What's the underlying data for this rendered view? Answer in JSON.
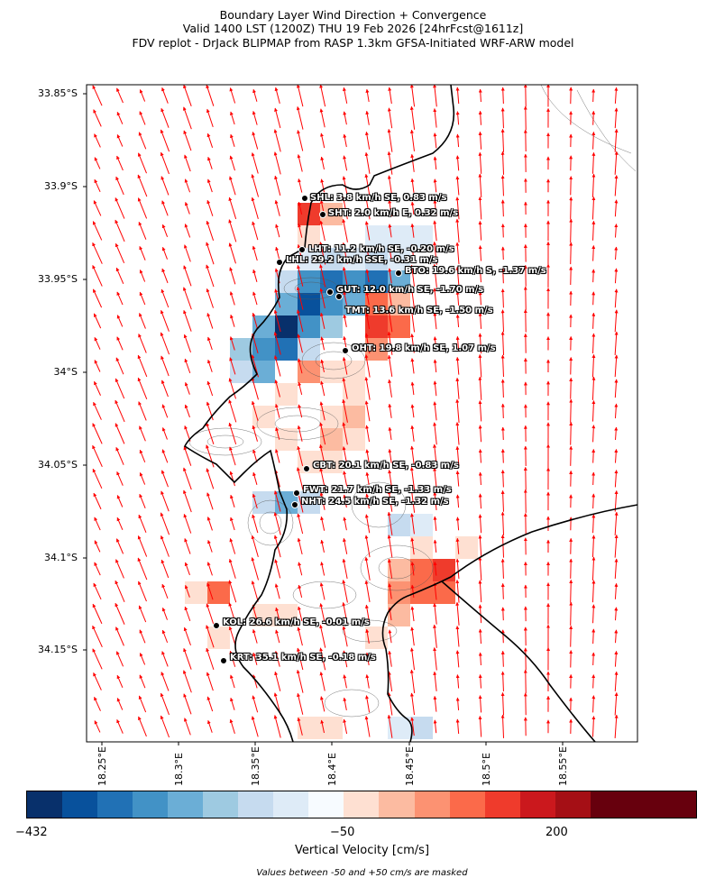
{
  "title": {
    "line1": "Boundary Layer Wind Direction + Convergence",
    "line2": "Valid 1400 LST (1200Z) THU 19 Feb 2026 [24hrFcst@1611z]",
    "line3": "FDV replot - DrJack BLIPMAP from RASP 1.3km GFSA-Initiated WRF-ARW model"
  },
  "map": {
    "lat_range": [
      -34.19,
      -33.84
    ],
    "lon_range": [
      18.19,
      18.55
    ],
    "lat_ticks": [
      "33.85°S",
      "33.9°S",
      "33.95°S",
      "34°S",
      "34.05°S",
      "34.1°S",
      "34.15°S"
    ],
    "lon_ticks": [
      "18.25°E",
      "18.3°E",
      "18.35°E",
      "18.4°E",
      "18.45°E",
      "18.5°E",
      "18.55°E"
    ],
    "wind_arrow_color": "#ff0000",
    "coastline_color": "#000000"
  },
  "stations": [
    {
      "id": "SHL",
      "label": "SHL: 3.8 km/h SE, 0.83 m/s"
    },
    {
      "id": "SHT",
      "label": "SHT: 2.0 km/h E, 0.32 m/s"
    },
    {
      "id": "LHT",
      "label": "LHT: 11.2 km/h SE, -0.20 m/s"
    },
    {
      "id": "LHL",
      "label": "LHL: 29.2 km/h SSE, -0.31 m/s"
    },
    {
      "id": "BTO",
      "label": "BTO: 19.6 km/h S, -1.37 m/s"
    },
    {
      "id": "GUT",
      "label": "GUT: 12.0 km/h SE, -1.70 m/s"
    },
    {
      "id": "TMT",
      "label": "TMT: 13.6 km/h SE, -1.50 m/s"
    },
    {
      "id": "OHT",
      "label": "OHT: 19.8 km/h SE, 1.07 m/s"
    },
    {
      "id": "CBT",
      "label": "CBT: 20.1 km/h SE, -0.83 m/s"
    },
    {
      "id": "FWT",
      "label": "FWT: 21.7 km/h SE, -1.33 m/s"
    },
    {
      "id": "NHT",
      "label": "NHT: 24.5 km/h SE, -1.32 m/s"
    },
    {
      "id": "KOL",
      "label": "KOL: 26.6 km/h SE, -0.01 m/s"
    },
    {
      "id": "KRT",
      "label": "KRT: 35.1 km/h SE, -0.18 m/s"
    }
  ],
  "colorbar": {
    "min_label": "−432",
    "mid_label": "−50",
    "max_label": "200",
    "title": "Vertical Velocity [cm/s]",
    "colors": [
      "#08306b",
      "#08519c",
      "#2171b5",
      "#4292c6",
      "#6baed6",
      "#9ecae1",
      "#c6dbef",
      "#deebf7",
      "#f7fbff",
      "#fee0d2",
      "#fcbba1",
      "#fc9272",
      "#fb6a4a",
      "#ef3b2c",
      "#cb181d",
      "#a50f15",
      "#67000d",
      "#67000d",
      "#67000d"
    ]
  },
  "note": "Values between -50 and +50 cm/s are masked"
}
